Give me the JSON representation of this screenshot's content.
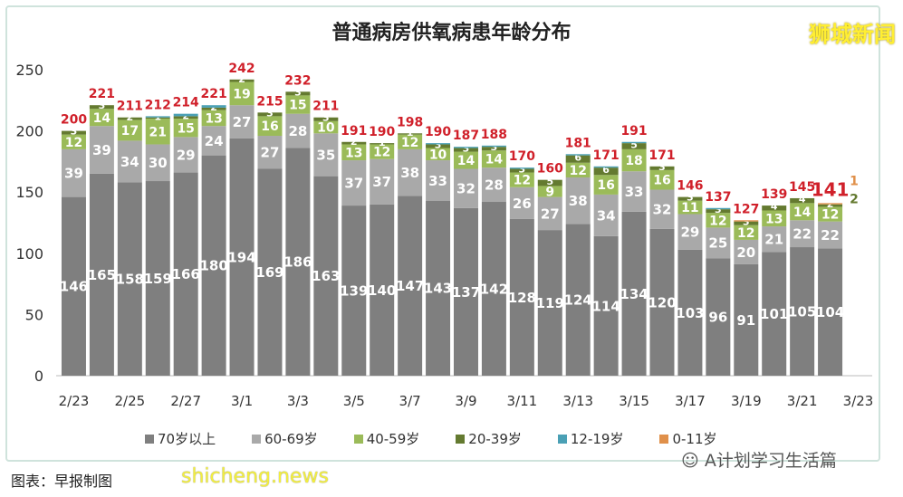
{
  "watermark": "狮城新闻",
  "footer": "图表：早报制图",
  "footer_overlay": "shicheng.news",
  "source_badge": "A计划学习生活篇",
  "chart_data": {
    "type": "bar",
    "stacked": true,
    "title": "普通病房供氧病患年龄分布",
    "ylim": [
      0,
      250
    ],
    "yticks": [
      0,
      50,
      100,
      150,
      200,
      250
    ],
    "xtick_labels": [
      "2/23",
      "2/25",
      "2/27",
      "3/1",
      "3/3",
      "3/5",
      "3/7",
      "3/9",
      "3/11",
      "3/13",
      "3/15",
      "3/17",
      "3/19",
      "3/21",
      "3/23"
    ],
    "categories": [
      "2/23",
      "2/24",
      "2/25",
      "2/26",
      "2/27",
      "2/28",
      "3/1",
      "3/2",
      "3/3",
      "3/4",
      "3/5",
      "3/6",
      "3/7",
      "3/8",
      "3/9",
      "3/10",
      "3/11",
      "3/12",
      "3/13",
      "3/14",
      "3/15",
      "3/16",
      "3/17",
      "3/18",
      "3/19",
      "3/20",
      "3/21",
      "3/22"
    ],
    "legend_position": "bottom",
    "grid": false,
    "series": [
      {
        "name": "70岁以上",
        "color": "#7f7f7f",
        "values": [
          146,
          165,
          158,
          159,
          166,
          180,
          194,
          169,
          186,
          163,
          139,
          140,
          147,
          143,
          137,
          142,
          128,
          119,
          124,
          114,
          134,
          120,
          103,
          96,
          91,
          101,
          105,
          104
        ]
      },
      {
        "name": "60-69岁",
        "color": "#a9a9a9",
        "values": [
          39,
          39,
          34,
          30,
          29,
          24,
          27,
          27,
          28,
          35,
          37,
          37,
          38,
          33,
          32,
          28,
          26,
          27,
          38,
          34,
          33,
          32,
          29,
          25,
          20,
          21,
          22,
          22
        ]
      },
      {
        "name": "40-59岁",
        "color": "#9bbb59",
        "values": [
          12,
          14,
          17,
          21,
          15,
          13,
          19,
          16,
          15,
          10,
          13,
          12,
          12,
          10,
          14,
          14,
          12,
          9,
          12,
          16,
          18,
          16,
          11,
          12,
          12,
          13,
          14,
          12
        ]
      },
      {
        "name": "20-39岁",
        "color": "#647a30",
        "values": [
          3,
          3,
          2,
          1,
          2,
          2,
          2,
          3,
          3,
          3,
          2,
          1,
          1,
          3,
          3,
          3,
          3,
          5,
          6,
          6,
          5,
          3,
          3,
          3,
          3,
          4,
          4,
          2
        ]
      },
      {
        "name": "12-19岁",
        "color": "#4aa0b5",
        "values": [
          0,
          0,
          0,
          1,
          2,
          2,
          0,
          0,
          0,
          0,
          0,
          0,
          0,
          1,
          1,
          1,
          1,
          0,
          1,
          1,
          1,
          0,
          0,
          1,
          0,
          0,
          0,
          0
        ]
      },
      {
        "name": "0-11岁",
        "color": "#e0904a",
        "values": [
          0,
          0,
          0,
          0,
          0,
          0,
          0,
          0,
          0,
          0,
          0,
          0,
          0,
          0,
          0,
          0,
          0,
          0,
          0,
          0,
          0,
          0,
          0,
          0,
          1,
          0,
          0,
          1
        ]
      }
    ],
    "totals": [
      200,
      221,
      211,
      212,
      214,
      221,
      242,
      215,
      232,
      211,
      191,
      190,
      198,
      190,
      187,
      188,
      170,
      160,
      181,
      171,
      191,
      171,
      146,
      137,
      127,
      139,
      145,
      141
    ]
  }
}
